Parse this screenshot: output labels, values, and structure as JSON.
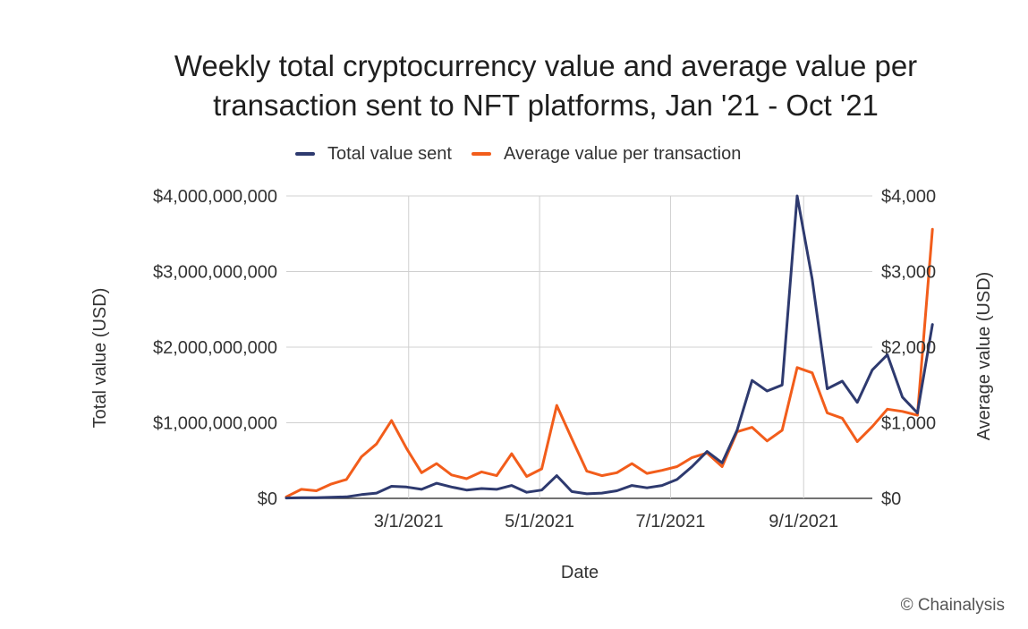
{
  "chart_data": {
    "type": "line",
    "title_line1": "Weekly total cryptocurrency value and average value per",
    "title_line2": "transaction sent to NFT platforms, Jan '21 - Oct '21",
    "xlabel": "Date",
    "ylabel_left": "Total value (USD)",
    "ylabel_right": "Average value (USD)",
    "x_start": "1/3/2021",
    "x_step_days": 7,
    "x_range_days": [
      0,
      273
    ],
    "x_ticks": [
      {
        "label": "3/1/2021",
        "day": 57
      },
      {
        "label": "5/1/2021",
        "day": 118
      },
      {
        "label": "7/1/2021",
        "day": 179
      },
      {
        "label": "9/1/2021",
        "day": 241
      }
    ],
    "y_left": {
      "range": [
        0,
        4000000000
      ],
      "ticks": [
        {
          "label": "$0",
          "value": 0
        },
        {
          "label": "$1,000,000,000",
          "value": 1000000000
        },
        {
          "label": "$2,000,000,000",
          "value": 2000000000
        },
        {
          "label": "$3,000,000,000",
          "value": 3000000000
        },
        {
          "label": "$4,000,000,000",
          "value": 4000000000
        }
      ]
    },
    "y_right": {
      "range": [
        0,
        4000
      ],
      "ticks": [
        {
          "label": "$0",
          "value": 0
        },
        {
          "label": "$1,000",
          "value": 1000
        },
        {
          "label": "$2,000",
          "value": 2000
        },
        {
          "label": "$3,000",
          "value": 3000
        },
        {
          "label": "$4,000",
          "value": 4000
        }
      ]
    },
    "series": [
      {
        "name": "Total value sent",
        "color": "#2e3a6f",
        "axis": "left",
        "values": [
          5000000,
          8000000,
          10000000,
          15000000,
          20000000,
          50000000,
          70000000,
          160000000,
          150000000,
          120000000,
          200000000,
          150000000,
          110000000,
          130000000,
          120000000,
          170000000,
          80000000,
          110000000,
          300000000,
          90000000,
          60000000,
          70000000,
          100000000,
          170000000,
          140000000,
          170000000,
          250000000,
          420000000,
          620000000,
          470000000,
          900000000,
          1560000000,
          1420000000,
          1500000000,
          4000000000,
          2900000000,
          1450000000,
          1550000000,
          1270000000,
          1700000000,
          1900000000,
          1340000000,
          1130000000,
          2300000000
        ]
      },
      {
        "name": "Average value per transaction",
        "color": "#f25d1b",
        "axis": "right",
        "values": [
          20,
          120,
          100,
          190,
          250,
          550,
          720,
          1030,
          660,
          340,
          460,
          310,
          260,
          350,
          300,
          590,
          290,
          390,
          1230,
          790,
          360,
          300,
          340,
          460,
          330,
          370,
          420,
          540,
          600,
          420,
          880,
          940,
          760,
          900,
          1730,
          1660,
          1130,
          1060,
          750,
          950,
          1180,
          1150,
          1100,
          3560
        ]
      }
    ]
  },
  "footer": {
    "credit": "© Chainalysis"
  }
}
